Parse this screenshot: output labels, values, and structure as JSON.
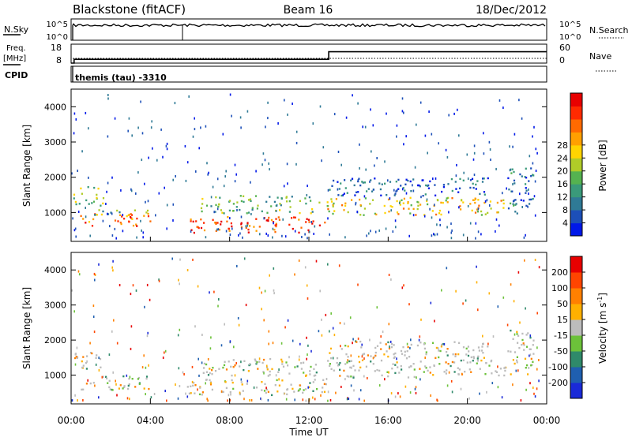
{
  "header": {
    "left": "Blackstone (fitACF)",
    "center": "Beam 16",
    "right": "18/Dec/2012"
  },
  "cpid_label": "themis (tau) -3310",
  "chart_data": [
    {
      "type": "line",
      "left_label": "N.Sky",
      "right_label": "N.Search",
      "left_ticks": [
        "10^5",
        "10^0"
      ],
      "right_ticks": [
        "10^5",
        "10^0"
      ]
    },
    {
      "type": "line",
      "left_label_line1": "Freq.",
      "left_label_line2": "[MHz]",
      "cpid_tag": "CPID",
      "right_label": "Nave",
      "left_ticks": [
        18,
        8
      ],
      "right_ticks": [
        60,
        0
      ],
      "freq_steps": [
        {
          "t": 0.0,
          "f": 8
        },
        {
          "t": 0.15,
          "f": 10
        },
        {
          "t": 13.0,
          "f": 14
        },
        {
          "t": 24.0,
          "f": 14
        }
      ]
    },
    {
      "type": "heatmap",
      "name": "power",
      "ylabel": "Slant Range [km]",
      "ylim": [
        180,
        4500
      ],
      "yticks": [
        1000,
        2000,
        3000,
        4000
      ],
      "xlim": [
        0,
        24
      ],
      "colorbar": {
        "label": "Power [dB]",
        "ticks": [
          4,
          8,
          12,
          16,
          20,
          24,
          28
        ],
        "colors": [
          "#0018e8",
          "#1c4fb8",
          "#2f7a96",
          "#3a9a7a",
          "#55b250",
          "#b0cc28",
          "#ffd400",
          "#ffa000",
          "#ff6a00",
          "#ff2a00",
          "#e80000"
        ]
      },
      "regions": [
        {
          "t0": 0.1,
          "t1": 1.6,
          "r0": 1200,
          "r1": 1750,
          "level": 0.45
        },
        {
          "t0": 0.4,
          "t1": 4.0,
          "r0": 600,
          "r1": 1000,
          "level": 0.8
        },
        {
          "t0": 1.0,
          "t1": 4.0,
          "r0": 950,
          "r1": 1100,
          "level": 0.35
        },
        {
          "t0": 5.8,
          "t1": 12.9,
          "r0": 450,
          "r1": 900,
          "level": 0.85
        },
        {
          "t0": 6.5,
          "t1": 12.5,
          "r0": 1000,
          "r1": 1500,
          "level": 0.4
        },
        {
          "t0": 12.9,
          "t1": 22.0,
          "r0": 950,
          "r1": 1450,
          "level": 0.6
        },
        {
          "t0": 13.0,
          "t1": 21.0,
          "r0": 1500,
          "r1": 2000,
          "level": 0.15
        },
        {
          "t0": 22.0,
          "t1": 23.3,
          "r0": 1000,
          "r1": 2300,
          "level": 0.2
        }
      ]
    },
    {
      "type": "heatmap",
      "name": "velocity",
      "ylabel": "Slant Range [km]",
      "ylim": [
        180,
        4500
      ],
      "yticks": [
        1000,
        2000,
        3000,
        4000
      ],
      "xlim": [
        0,
        24
      ],
      "xticks": [
        "00:00",
        "04:00",
        "08:00",
        "12:00",
        "16:00",
        "20:00",
        "00:00"
      ],
      "xlabel": "Time UT",
      "colorbar": {
        "label_main": "Velocity [m s",
        "label_sup": "-1",
        "label_end": "]",
        "ticks": [
          200,
          100,
          50,
          15,
          -15,
          -50,
          -100,
          -200
        ],
        "colors": [
          "#1a2ad8",
          "#1f5fb0",
          "#2f8a6a",
          "#6cc23a",
          "#bcbcbc",
          "#ffb000",
          "#ff8000",
          "#ff4500",
          "#e80000"
        ]
      },
      "regions": [
        {
          "t0": 0.1,
          "t1": 1.6,
          "r0": 1200,
          "r1": 1750,
          "level": 0.5
        },
        {
          "t0": 0.4,
          "t1": 4.0,
          "r0": 600,
          "r1": 1000,
          "level": 0.5
        },
        {
          "t0": 5.8,
          "t1": 12.9,
          "r0": 450,
          "r1": 900,
          "level": 0.55
        },
        {
          "t0": 6.5,
          "t1": 12.5,
          "r0": 1000,
          "r1": 1500,
          "level": 0.6
        },
        {
          "t0": 12.9,
          "t1": 22.0,
          "r0": 950,
          "r1": 1450,
          "level": 0.45
        },
        {
          "t0": 13.0,
          "t1": 21.0,
          "r0": 1500,
          "r1": 2000,
          "level": 0.4
        },
        {
          "t0": 22.0,
          "t1": 23.3,
          "r0": 1000,
          "r1": 2300,
          "level": 0.35
        }
      ]
    }
  ]
}
